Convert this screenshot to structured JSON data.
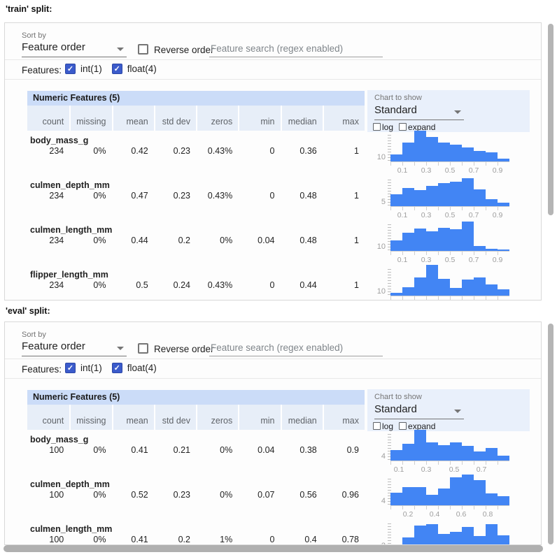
{
  "page": {
    "train_label": "'train' split:",
    "eval_label": "'eval' split:"
  },
  "controls": {
    "sort_by_label": "Sort by",
    "sort_by_value": "Feature order",
    "reverse_order_label": "Reverse order",
    "search_placeholder": "Feature search (regex enabled)",
    "features_label": "Features:",
    "feature_type_filters": [
      {
        "label": "int(1)",
        "checked": true
      },
      {
        "label": "float(4)",
        "checked": true
      }
    ],
    "chart_label": "Chart to show",
    "chart_value": "Standard",
    "log_label": "log",
    "expand_label": "expand"
  },
  "table": {
    "title": "Numeric Features (5)",
    "columns": [
      "count",
      "missing",
      "mean",
      "std dev",
      "zeros",
      "min",
      "median",
      "max"
    ]
  },
  "colors": {
    "bar": "#4285f4",
    "checkbox_blue": "#3b5bcb",
    "table_header_bg": "#cbdcf8",
    "table_subheader_bg": "#e7eef8",
    "chart_box_bg": "#e9f0fb"
  },
  "splits": {
    "train": {
      "features": [
        {
          "name": "body_mass_g",
          "stats": [
            "234",
            "0%",
            "0.42",
            "0.23",
            "0.43%",
            "0",
            "0.36",
            "1"
          ],
          "hist": {
            "y_tick": "10",
            "bins": [
              0.22,
              0.62,
              1.0,
              0.8,
              0.62,
              0.55,
              0.45,
              0.35,
              0.3,
              0.1
            ],
            "x_ticks": [
              "0.1",
              "0.3",
              "0.5",
              "0.7",
              "0.9"
            ],
            "domain": [
              0,
              1
            ]
          }
        },
        {
          "name": "culmen_depth_mm",
          "stats": [
            "234",
            "0%",
            "0.47",
            "0.23",
            "0.43%",
            "0",
            "0.48",
            "1"
          ],
          "hist": {
            "y_tick": "5",
            "bins": [
              0.38,
              0.58,
              0.52,
              0.65,
              0.75,
              0.8,
              0.92,
              0.55,
              0.22,
              0.12
            ],
            "x_ticks": [
              "0.1",
              "0.3",
              "0.5",
              "0.7",
              "0.9"
            ],
            "domain": [
              0,
              1
            ]
          }
        },
        {
          "name": "culmen_length_mm",
          "stats": [
            "234",
            "0%",
            "0.44",
            "0.2",
            "0%",
            "0.04",
            "0.48",
            "1"
          ],
          "hist": {
            "y_tick": "10",
            "bins": [
              0.33,
              0.6,
              0.72,
              0.63,
              0.75,
              0.7,
              0.95,
              0.15,
              0.06,
              0.04
            ],
            "x_ticks": [
              "0.1",
              "0.3",
              "0.5",
              "0.7",
              "0.9"
            ],
            "domain": [
              0,
              1
            ]
          }
        },
        {
          "name": "flipper_length_mm",
          "stats": [
            "234",
            "0%",
            "0.5",
            "0.24",
            "0.43%",
            "0",
            "0.44",
            "1"
          ],
          "hist": {
            "y_tick": "10",
            "bins": [
              0.08,
              0.28,
              0.6,
              1.0,
              0.55,
              0.26,
              0.52,
              0.6,
              0.36,
              0.2
            ],
            "x_ticks": [],
            "domain": [
              0,
              1
            ]
          }
        }
      ]
    },
    "eval": {
      "features": [
        {
          "name": "body_mass_g",
          "stats": [
            "100",
            "0%",
            "0.41",
            "0.21",
            "0%",
            "0.04",
            "0.38",
            "0.9"
          ],
          "hist": {
            "y_tick": "4",
            "bins": [
              0.33,
              0.55,
              1.0,
              0.6,
              0.5,
              0.58,
              0.48,
              0.3,
              0.4,
              0.15
            ],
            "x_ticks": [
              "0.1",
              "0.3",
              "0.5",
              "0.7"
            ],
            "domain": [
              0.04,
              0.9
            ]
          }
        },
        {
          "name": "culmen_depth_mm",
          "stats": [
            "100",
            "0%",
            "0.52",
            "0.23",
            "0%",
            "0.07",
            "0.56",
            "0.96"
          ],
          "hist": {
            "y_tick": "4",
            "bins": [
              0.42,
              0.58,
              0.58,
              0.35,
              0.55,
              0.9,
              1.0,
              0.82,
              0.38,
              0.3
            ],
            "x_ticks": [
              "0.2",
              "0.4",
              "0.6",
              "0.8"
            ],
            "domain": [
              0.07,
              0.96
            ]
          }
        },
        {
          "name": "culmen_length_mm",
          "stats": [
            "100",
            "0%",
            "0.41",
            "0.2",
            "1%",
            "0",
            "0.4",
            "0.78"
          ],
          "hist": {
            "y_tick": "2",
            "bins": [
              0.1,
              0.4,
              0.8,
              0.85,
              0.52,
              0.58,
              0.75,
              0.46,
              0.85,
              0.48
            ],
            "x_ticks": [],
            "domain": [
              0,
              0.78
            ]
          }
        }
      ]
    }
  }
}
